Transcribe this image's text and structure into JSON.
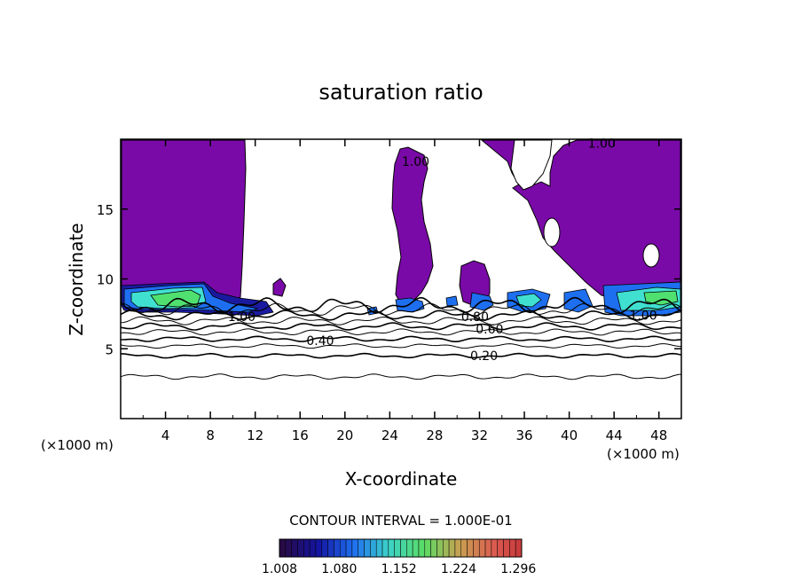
{
  "chart_data": {
    "type": "contour",
    "title": "saturation ratio",
    "xlabel": "X-coordinate",
    "ylabel": "Z-coordinate",
    "x_unit_left": "(×1000 m)",
    "x_unit_right": "(×1000 m)",
    "xlim": [
      0,
      50
    ],
    "ylim": [
      0,
      20
    ],
    "xticks": [
      4,
      8,
      12,
      16,
      20,
      24,
      28,
      32,
      36,
      40,
      44,
      48
    ],
    "yticks": [
      5,
      10,
      15
    ],
    "contour_interval_text": "CONTOUR INTERVAL = 1.000E-01",
    "contour_labels": [
      {
        "text": "1.00",
        "x": 10.8,
        "z": 7.3
      },
      {
        "text": "0.80",
        "x": 31.6,
        "z": 7.3
      },
      {
        "text": "0.60",
        "x": 32.9,
        "z": 6.4
      },
      {
        "text": "0.40",
        "x": 17.8,
        "z": 5.6
      },
      {
        "text": "0.20",
        "x": 32.4,
        "z": 4.5
      },
      {
        "text": "1.00",
        "x": 46.6,
        "z": 7.4
      },
      {
        "text": "1.00",
        "x": 42.9,
        "z": 19.7
      },
      {
        "text": "1.00",
        "x": 26.3,
        "z": 18.4
      }
    ],
    "colorbar": {
      "min": 1.008,
      "max": 1.3,
      "tick_labels": [
        "1.008",
        "1.080",
        "1.152",
        "1.224",
        "1.296"
      ]
    },
    "colors": {
      "supersaturated": "#7a0aa8",
      "low": "#1a1aa0",
      "mid_blue": "#1e6ff0",
      "cyan": "#40e0d0",
      "green": "#50e070"
    }
  }
}
